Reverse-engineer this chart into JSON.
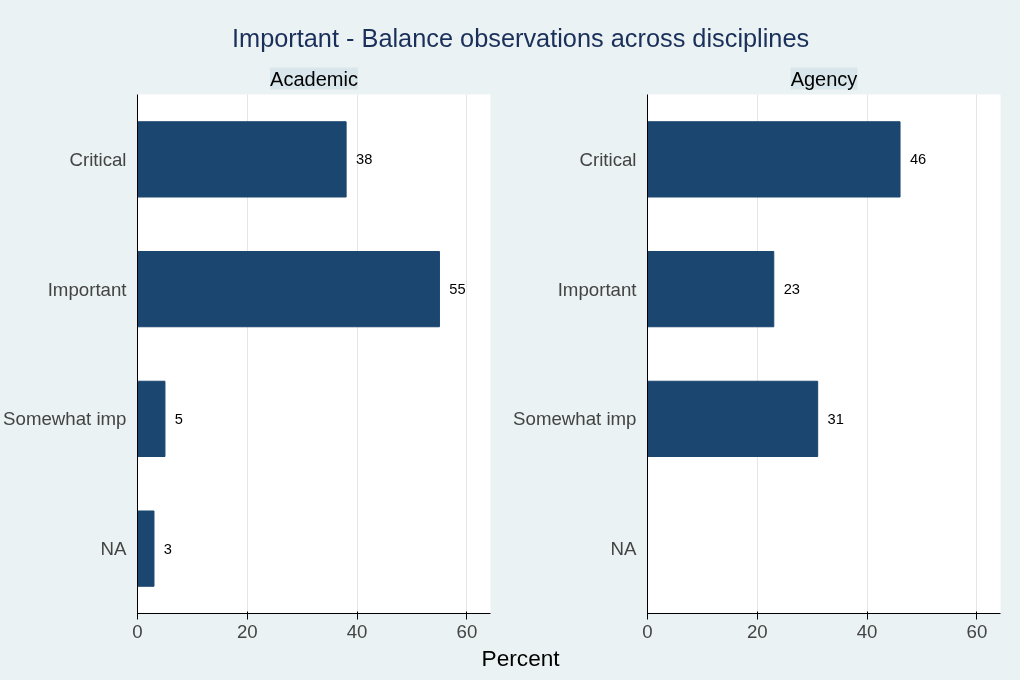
{
  "chart_data": [
    {
      "type": "bar",
      "orientation": "horizontal",
      "title": "Important - Balance observations across disciplines",
      "subtitle": "Academic",
      "xlabel": "Percent",
      "categories": [
        "Critical",
        "Important",
        "Somewhat imp",
        "NA"
      ],
      "series": [
        {
          "color": "#1a4670",
          "values": [
            38,
            55,
            5,
            3
          ]
        }
      ],
      "xlim": [
        0,
        64.3
      ],
      "xticks": [
        0,
        20,
        40,
        60
      ],
      "grid": "x",
      "data_labels": true
    },
    {
      "type": "bar",
      "orientation": "horizontal",
      "subtitle": "Agency",
      "categories": [
        "Critical",
        "Important",
        "Somewhat imp",
        "NA"
      ],
      "series": [
        {
          "color": "#1a4670",
          "values": [
            46,
            23,
            31,
            null
          ]
        }
      ],
      "xlim": [
        0,
        64.3
      ],
      "xticks": [
        0,
        20,
        40,
        60
      ],
      "grid": "x",
      "data_labels": true
    }
  ]
}
